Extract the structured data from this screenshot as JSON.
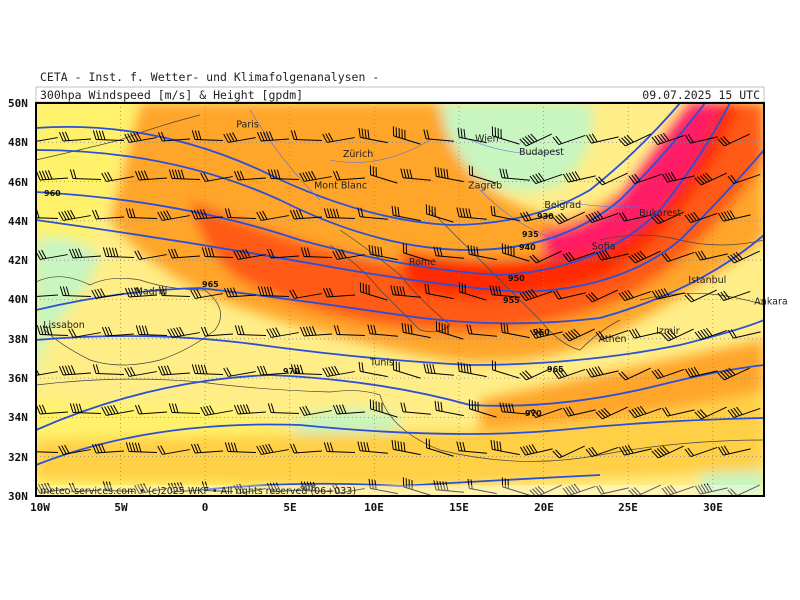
{
  "header": {
    "institute": "CETA - Inst. f. Wetter- und Klimafolgenanalysen -",
    "product": "300hpa Windspeed [m/s] & Height [gpdm]",
    "valid_time": "09.07.2025 15 UTC"
  },
  "footer": {
    "credit": "meteo-services.com • (c)2025 WKF • All rights reserved (06+033)"
  },
  "axes": {
    "lat_labels": [
      "50N",
      "48N",
      "46N",
      "44N",
      "42N",
      "40N",
      "38N",
      "36N",
      "34N",
      "32N",
      "30N"
    ],
    "lon_labels": [
      "10W",
      "5W",
      "0",
      "5E",
      "10E",
      "15E",
      "20E",
      "25E",
      "30E"
    ]
  },
  "cities": [
    {
      "name": "Paris",
      "lon": 2.3,
      "lat": 48.9
    },
    {
      "name": "Zürich",
      "lon": 8.6,
      "lat": 47.4
    },
    {
      "name": "Wien",
      "lon": 16.4,
      "lat": 48.2
    },
    {
      "name": "Budapest",
      "lon": 19.0,
      "lat": 47.5
    },
    {
      "name": "Zagreb",
      "lon": 16.0,
      "lat": 45.8
    },
    {
      "name": "Belgrad",
      "lon": 20.5,
      "lat": 44.8
    },
    {
      "name": "Bukarest",
      "lon": 26.1,
      "lat": 44.4
    },
    {
      "name": "Sofia",
      "lon": 23.3,
      "lat": 42.7
    },
    {
      "name": "Rome",
      "lon": 12.5,
      "lat": 41.9
    },
    {
      "name": "Istanbul",
      "lon": 29.0,
      "lat": 41.0
    },
    {
      "name": "Ankara",
      "lon": 32.9,
      "lat": 39.9
    },
    {
      "name": "Athen",
      "lon": 23.7,
      "lat": 38.0
    },
    {
      "name": "Izmir",
      "lon": 27.1,
      "lat": 38.4
    },
    {
      "name": "Madrid",
      "lon": -3.7,
      "lat": 40.4
    },
    {
      "name": "Lissabon",
      "lon": -9.1,
      "lat": 38.7
    },
    {
      "name": "Tunis",
      "lon": 10.2,
      "lat": 36.8
    },
    {
      "name": "Mont Blanc",
      "lon": 6.9,
      "lat": 45.8
    }
  ],
  "contour_labels": [
    "930",
    "935",
    "940",
    "950",
    "955",
    "960",
    "965",
    "970",
    "975",
    "960",
    "965",
    "970"
  ],
  "colors": {
    "contour": "#2b4fd6",
    "wind_low": "#c8f5c0",
    "wind_mid": "#ffee88",
    "wind_high": "#ffa52a",
    "wind_jet": "#ff3a00",
    "wind_core": "#ff1a66"
  }
}
